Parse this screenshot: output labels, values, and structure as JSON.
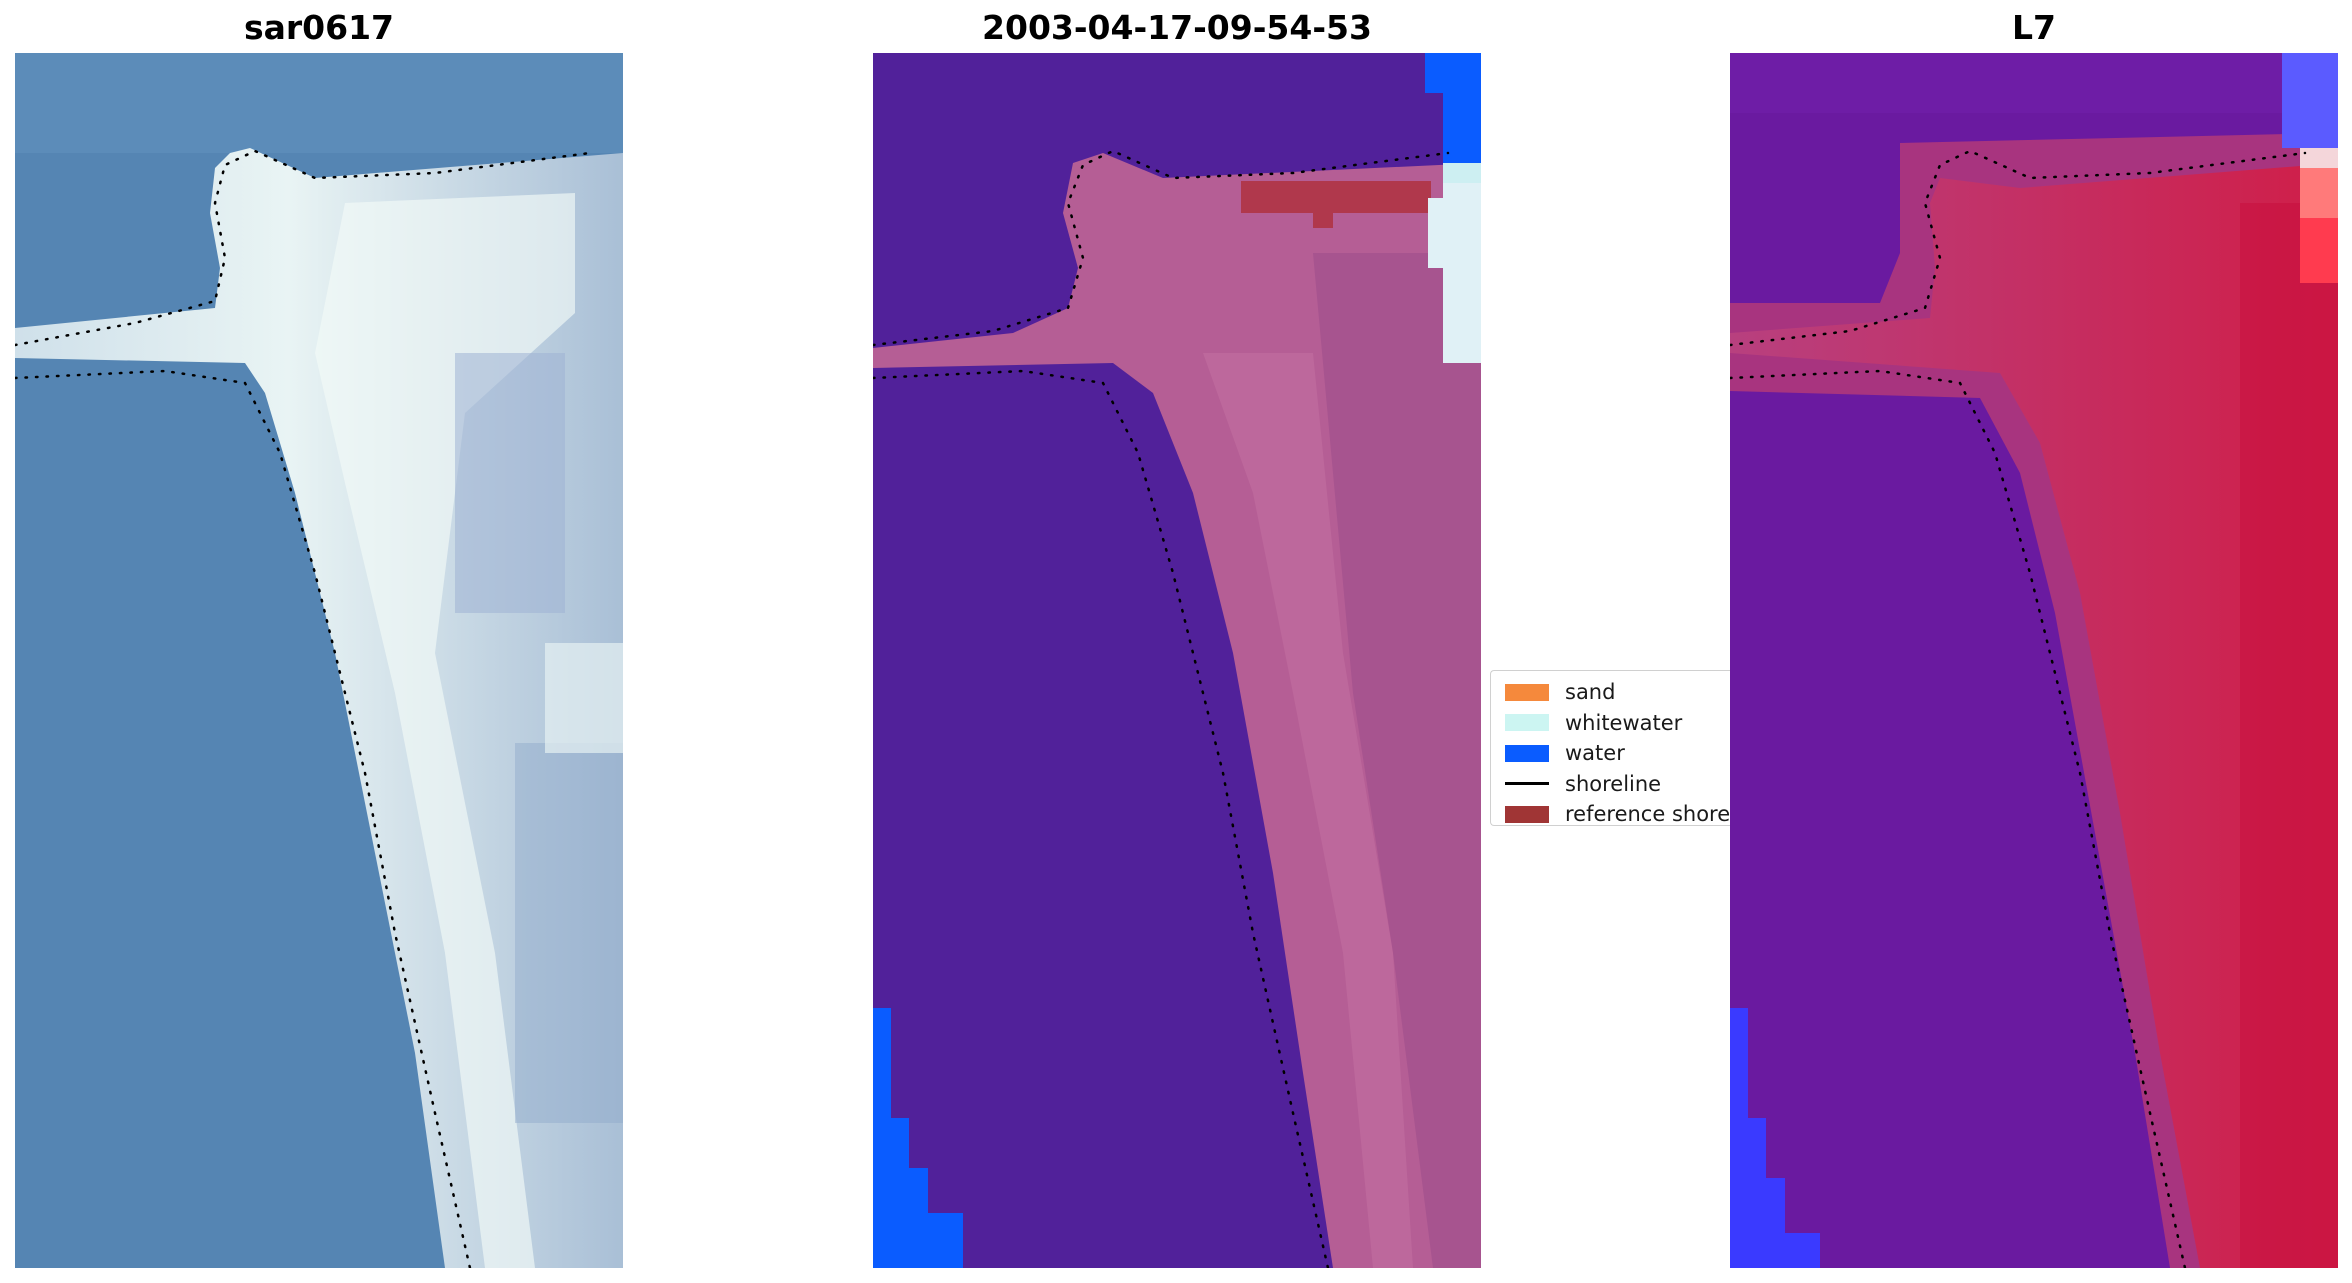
{
  "figure": {
    "panels": [
      {
        "title": "sar0617"
      },
      {
        "title": "2003-04-17-09-54-53"
      },
      {
        "title": "L7"
      }
    ]
  },
  "legend": {
    "items": [
      {
        "label": "sand",
        "color": "#f5893c",
        "kind": "patch"
      },
      {
        "label": "whitewater",
        "color": "#ccf5f2",
        "kind": "patch"
      },
      {
        "label": "water",
        "color": "#0a5cff",
        "kind": "patch"
      },
      {
        "label": "shoreline",
        "color": "#000000",
        "kind": "line"
      },
      {
        "label": "reference shoreline",
        "color": "#a03535",
        "kind": "patch"
      }
    ]
  },
  "colors": {
    "rgb_water": "#5585b3",
    "rgb_sand": "#dde7ef",
    "class_background": "#51219a",
    "class_sand": "#b55e95",
    "class_water": "#0a5cff",
    "class_reference": "#b0384c",
    "index_low": "#6a1aa0",
    "index_high": "#c8103f",
    "index_water": "#3a3aff"
  }
}
